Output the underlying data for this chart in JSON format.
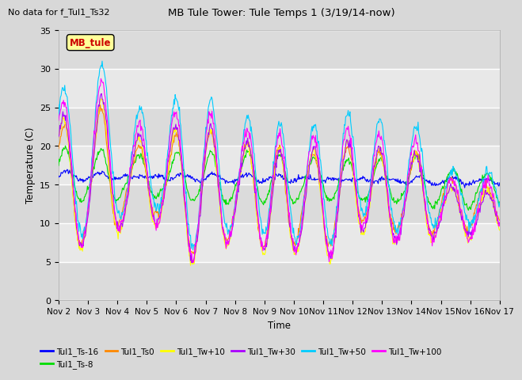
{
  "title": "MB Tule Tower: Tule Temps 1 (3/19/14-now)",
  "subtitle": "No data for f_Tul1_Ts32",
  "xlabel": "Time",
  "ylabel": "Temperature (C)",
  "ylim": [
    0,
    35
  ],
  "yticks": [
    0,
    5,
    10,
    15,
    20,
    25,
    30,
    35
  ],
  "x_tick_labels": [
    "Nov 2",
    "Nov 3",
    "Nov 4",
    "Nov 5",
    "Nov 6",
    "Nov 7",
    "Nov 8",
    "Nov 9",
    "Nov 10",
    "Nov 11",
    "Nov 12",
    "Nov 13",
    "Nov 14",
    "Nov 15",
    "Nov 16",
    "Nov 17"
  ],
  "legend_label": "MB_tule",
  "series_names": [
    "Tul1_Ts-16",
    "Tul1_Ts-8",
    "Tul1_Ts0",
    "Tul1_Tw+10",
    "Tul1_Tw+30",
    "Tul1_Tw+50",
    "Tul1_Tw+100"
  ],
  "series_colors": [
    "#0000ff",
    "#00dd00",
    "#ff8800",
    "#ffff00",
    "#aa00ff",
    "#00ccff",
    "#ff00ff"
  ],
  "plot_bg_color": "#e8e8e8",
  "grid_color": "#ffffff",
  "annotation_box_color": "#ffff99",
  "annotation_text_color": "#cc0000",
  "fig_bg_color": "#d8d8d8"
}
